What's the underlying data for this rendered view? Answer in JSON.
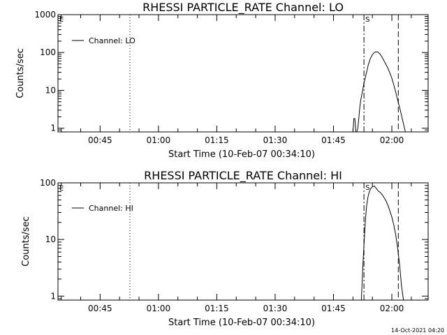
{
  "chart_data": [
    {
      "type": "line",
      "title": "RHESSI PARTICLE_RATE Channel: LO",
      "xlabel": "Start Time (10-Feb-07 00:34:10)",
      "ylabel": "Counts/sec",
      "yscale": "log",
      "ylim": [
        0.8,
        1000
      ],
      "xlim": [
        "00:34:10",
        "02:09:20"
      ],
      "xticks": [
        "00:45",
        "01:00",
        "01:15",
        "01:30",
        "01:45",
        "02:00"
      ],
      "yticks": [
        "1",
        "10",
        "100",
        "1000"
      ],
      "legend": {
        "placement": "top-left",
        "entries": [
          "Channel: LO"
        ]
      },
      "grid": false,
      "markers": [
        "E",
        "S"
      ],
      "vlines": [
        {
          "time": "00:52:40",
          "style": "dotted"
        },
        {
          "time": "01:52:50",
          "style": "dash-dot",
          "label": "S"
        },
        {
          "time": "02:01:40",
          "style": "dashed"
        },
        {
          "time": "02:09:20",
          "style": "dotted"
        }
      ],
      "series": [
        {
          "name": "Channel: LO",
          "x": [
            "01:50:00",
            "01:50:15",
            "01:50:30",
            "01:50:45",
            "01:51:00",
            "01:51:15",
            "01:51:30",
            "01:51:45",
            "01:52:00",
            "01:52:15",
            "01:52:30",
            "01:52:45",
            "01:53:00",
            "01:53:30",
            "01:54:00",
            "01:54:30",
            "01:55:00",
            "01:55:30",
            "01:56:00",
            "01:56:30",
            "01:57:00",
            "01:57:30",
            "01:58:00",
            "01:58:30",
            "01:59:00",
            "01:59:30",
            "02:00:00",
            "02:00:30",
            "02:01:00",
            "02:01:30",
            "02:02:00",
            "02:02:30",
            "02:03:00",
            "02:03:15",
            "02:03:30"
          ],
          "y": [
            0.8,
            1.8,
            1.8,
            0.8,
            0.8,
            1.0,
            1.8,
            3.5,
            5.5,
            7.5,
            10,
            14,
            18,
            30,
            50,
            70,
            88,
            100,
            105,
            102,
            90,
            75,
            60,
            48,
            38,
            29,
            21,
            14,
            9,
            5.5,
            3.5,
            2.2,
            1.3,
            1.0,
            0.8
          ]
        }
      ]
    },
    {
      "type": "line",
      "title": "RHESSI PARTICLE_RATE Channel: HI",
      "xlabel": "Start Time (10-Feb-07 00:34:10)",
      "ylabel": "Counts/sec",
      "yscale": "log",
      "ylim": [
        0.85,
        100
      ],
      "xlim": [
        "00:34:10",
        "02:09:20"
      ],
      "xticks": [
        "00:45",
        "01:00",
        "01:15",
        "01:30",
        "01:45",
        "02:00"
      ],
      "yticks": [
        "1",
        "10",
        "100"
      ],
      "legend": {
        "placement": "top-left",
        "entries": [
          "Channel: HI"
        ]
      },
      "grid": false,
      "markers": [
        "E",
        "S"
      ],
      "vlines": [
        {
          "time": "00:52:40",
          "style": "dotted"
        },
        {
          "time": "01:52:50",
          "style": "dash-dot",
          "label": "S"
        },
        {
          "time": "02:01:40",
          "style": "dashed"
        },
        {
          "time": "02:09:20",
          "style": "dotted"
        }
      ],
      "series": [
        {
          "name": "Channel: HI",
          "x": [
            "01:52:10",
            "01:52:30",
            "01:52:50",
            "01:53:10",
            "01:53:30",
            "01:53:50",
            "01:54:10",
            "01:54:30",
            "01:55:00",
            "01:55:30",
            "01:56:00",
            "01:56:30",
            "01:57:00",
            "01:57:30",
            "01:58:00",
            "01:58:30",
            "01:59:00",
            "01:59:30",
            "02:00:00",
            "02:00:30",
            "02:01:00",
            "02:01:30",
            "02:02:00",
            "02:02:30",
            "02:03:00"
          ],
          "y": [
            0.85,
            3,
            8,
            20,
            38,
            55,
            68,
            78,
            85,
            88,
            80,
            72,
            68,
            62,
            55,
            48,
            40,
            32,
            25,
            18,
            12,
            7,
            3.5,
            1.5,
            0.85
          ]
        }
      ]
    }
  ],
  "footer": {
    "timestamp": "14-Oct-2021 04:20"
  }
}
